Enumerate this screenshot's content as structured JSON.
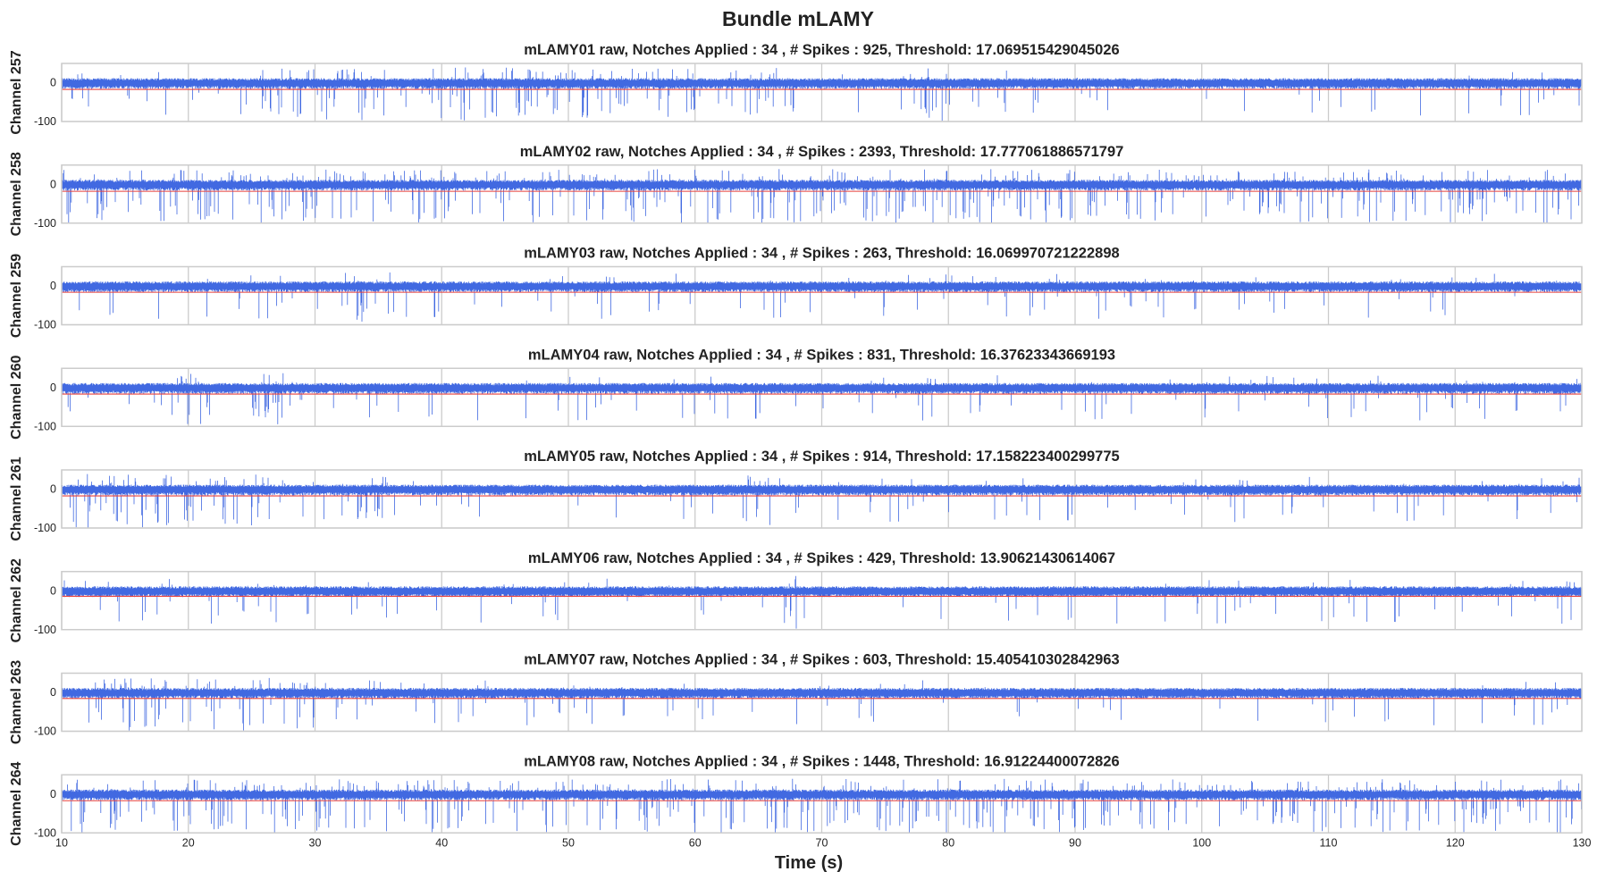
{
  "figure": {
    "title": "Bundle mLAMY",
    "xlabel": "Time (s)"
  },
  "colors": {
    "signal": "#4169e1",
    "threshold": "#e8413c",
    "grid": "#cccccc",
    "axes_frame": "#cccccc"
  },
  "chart_data": [
    {
      "type": "line",
      "title": "mLAMY01 raw, Notches Applied : 34 , # Spikes : 925, Threshold: 17.069515429045026",
      "ylabel": "Channel 257",
      "xlabel": "",
      "xlim": [
        10,
        130
      ],
      "ylim": [
        -100,
        50
      ],
      "xticks": [
        10,
        20,
        30,
        40,
        50,
        60,
        70,
        80,
        90,
        100,
        110,
        120,
        130
      ],
      "yticks": [
        0,
        -100
      ],
      "grid": true,
      "threshold_y": -17.07,
      "series": [
        {
          "values": []
        }
      ],
      "spike_bursts": [
        [
          25,
          36
        ],
        [
          39,
          68
        ],
        [
          77,
          80
        ]
      ]
    },
    {
      "type": "line",
      "title": "mLAMY02 raw, Notches Applied : 34 , # Spikes : 2393, Threshold: 17.777061886571797",
      "ylabel": "Channel 258",
      "xlabel": "",
      "xlim": [
        10,
        130
      ],
      "ylim": [
        -100,
        50
      ],
      "xticks": [
        10,
        20,
        30,
        40,
        50,
        60,
        70,
        80,
        90,
        100,
        110,
        120,
        130
      ],
      "yticks": [
        0,
        -100
      ],
      "grid": true,
      "threshold_y": -17.78,
      "series": [
        {
          "values": []
        }
      ],
      "spike_bursts": [
        [
          10,
          130
        ],
        [
          112,
          120
        ]
      ]
    },
    {
      "type": "line",
      "title": "mLAMY03 raw, Notches Applied : 34 , # Spikes : 263, Threshold: 16.069970721222898",
      "ylabel": "Channel 259",
      "xlabel": "",
      "xlim": [
        10,
        130
      ],
      "ylim": [
        -100,
        50
      ],
      "xticks": [
        10,
        20,
        30,
        40,
        50,
        60,
        70,
        80,
        90,
        100,
        110,
        120,
        130
      ],
      "yticks": [
        0,
        -100
      ],
      "grid": true,
      "threshold_y": -16.07,
      "series": [
        {
          "values": []
        }
      ],
      "spike_bursts": [
        [
          32,
          36
        ]
      ]
    },
    {
      "type": "line",
      "title": "mLAMY04 raw, Notches Applied : 34 , # Spikes : 831, Threshold: 16.37623343669193",
      "ylabel": "Channel 260",
      "xlabel": "",
      "xlim": [
        10,
        130
      ],
      "ylim": [
        -100,
        50
      ],
      "xticks": [
        10,
        20,
        30,
        40,
        50,
        60,
        70,
        80,
        90,
        100,
        110,
        120,
        130
      ],
      "yticks": [
        0,
        -100
      ],
      "grid": true,
      "threshold_y": -16.38,
      "series": [
        {
          "values": []
        }
      ],
      "spike_bursts": [
        [
          19,
          22
        ],
        [
          25,
          29
        ]
      ]
    },
    {
      "type": "line",
      "title": "mLAMY05 raw, Notches Applied : 34 , # Spikes : 914, Threshold: 17.158223400299775",
      "ylabel": "Channel 261",
      "xlabel": "",
      "xlim": [
        10,
        130
      ],
      "ylim": [
        -100,
        50
      ],
      "xticks": [
        10,
        20,
        30,
        40,
        50,
        60,
        70,
        80,
        90,
        100,
        110,
        120,
        130
      ],
      "yticks": [
        0,
        -100
      ],
      "grid": true,
      "threshold_y": -17.16,
      "series": [
        {
          "values": []
        }
      ],
      "spike_bursts": [
        [
          10,
          28
        ],
        [
          32,
          36
        ],
        [
          64,
          66
        ]
      ]
    },
    {
      "type": "line",
      "title": "mLAMY06 raw, Notches Applied : 34 , # Spikes : 429, Threshold: 13.90621430614067",
      "ylabel": "Channel 262",
      "xlabel": "",
      "xlim": [
        10,
        130
      ],
      "ylim": [
        -100,
        50
      ],
      "xticks": [
        10,
        20,
        30,
        40,
        50,
        60,
        70,
        80,
        90,
        100,
        110,
        120,
        130
      ],
      "yticks": [
        0,
        -100
      ],
      "grid": true,
      "threshold_y": -13.91,
      "series": [
        {
          "values": []
        }
      ],
      "spike_bursts": [
        [
          67,
          68
        ]
      ]
    },
    {
      "type": "line",
      "title": "mLAMY07 raw, Notches Applied : 34 , # Spikes : 603, Threshold: 15.405410302842963",
      "ylabel": "Channel 263",
      "xlabel": "",
      "xlim": [
        10,
        130
      ],
      "ylim": [
        -100,
        50
      ],
      "xticks": [
        10,
        20,
        30,
        40,
        50,
        60,
        70,
        80,
        90,
        100,
        110,
        120,
        130
      ],
      "yticks": [
        0,
        -100
      ],
      "grid": true,
      "threshold_y": -15.41,
      "series": [
        {
          "values": []
        }
      ],
      "spike_bursts": [
        [
          12,
          32
        ]
      ]
    },
    {
      "type": "line",
      "title": "mLAMY08 raw, Notches Applied : 34 , # Spikes : 1448, Threshold: 16.91224400072826",
      "ylabel": "Channel 264",
      "xlabel": "Time (s)",
      "xlim": [
        10,
        130
      ],
      "ylim": [
        -100,
        50
      ],
      "xticks": [
        10,
        20,
        30,
        40,
        50,
        60,
        70,
        80,
        90,
        100,
        110,
        120,
        130
      ],
      "yticks": [
        0,
        -100
      ],
      "grid": true,
      "threshold_y": -16.91,
      "series": [
        {
          "values": []
        }
      ],
      "spike_bursts": [
        [
          10,
          130
        ],
        [
          116,
          120
        ]
      ]
    }
  ]
}
